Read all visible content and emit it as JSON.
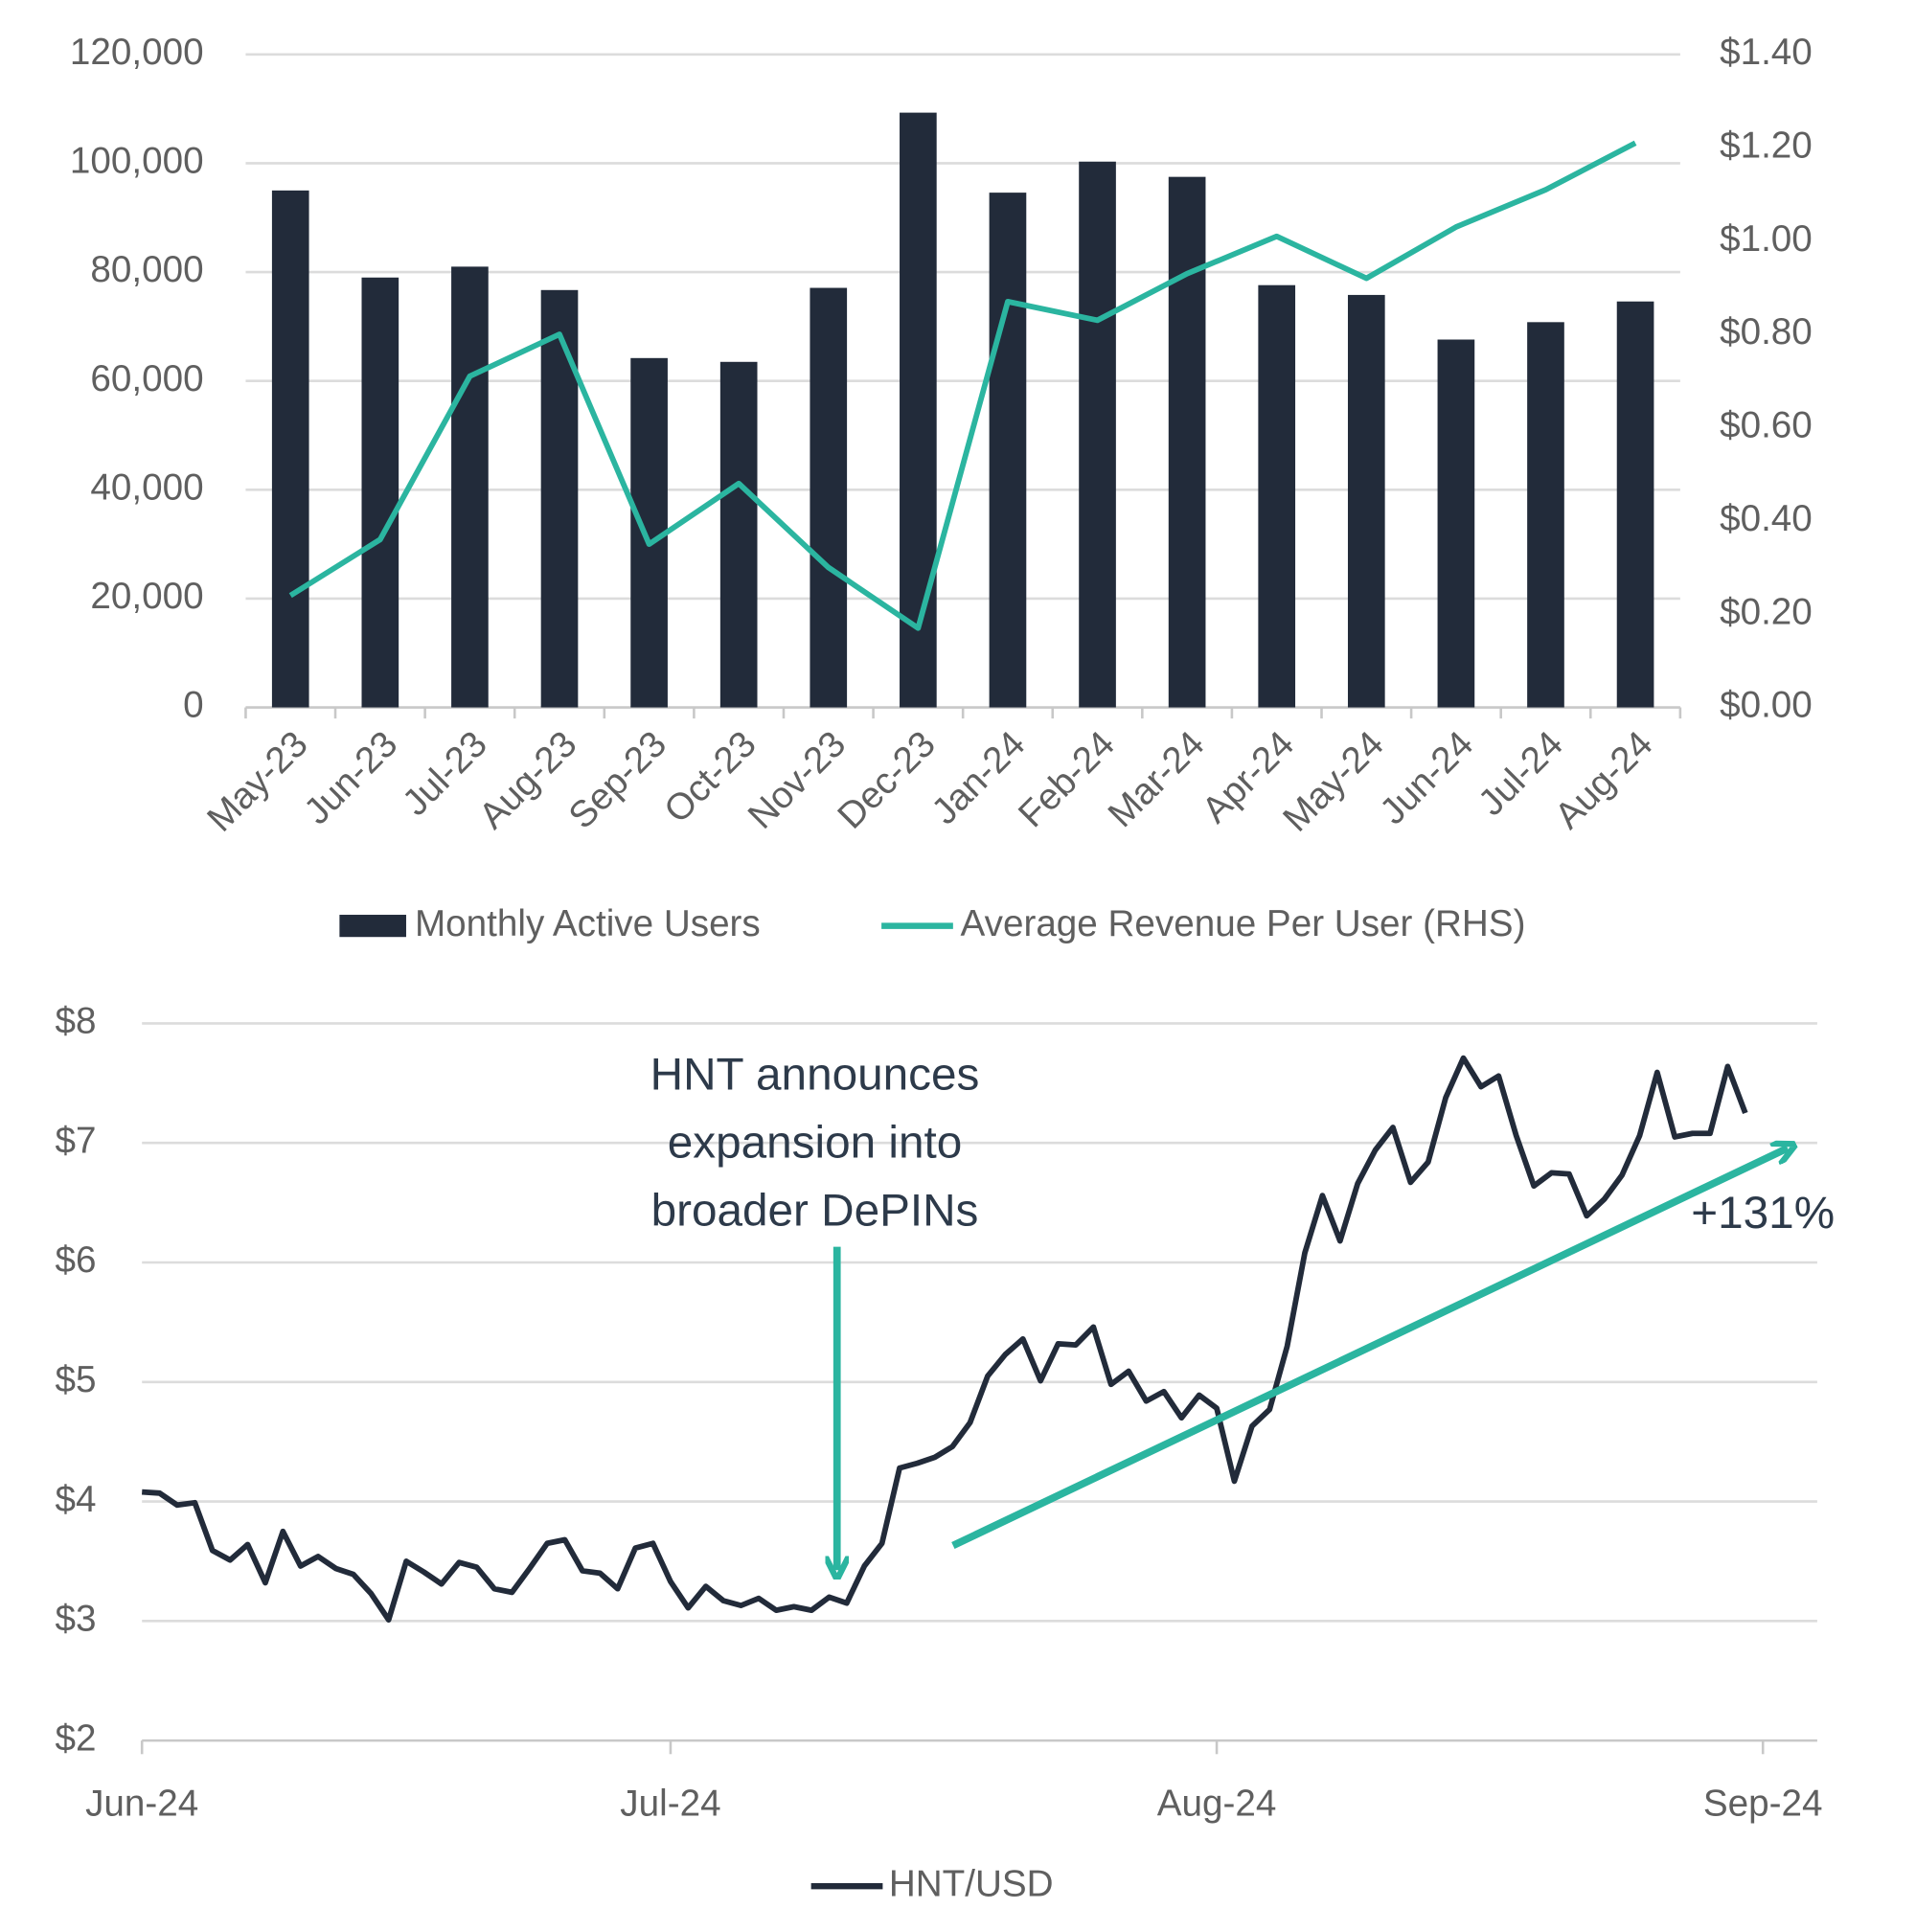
{
  "chart_data": [
    {
      "type": "bar",
      "categories": [
        "May-23",
        "Jun-23",
        "Jul-23",
        "Aug-23",
        "Sep-23",
        "Oct-23",
        "Nov-23",
        "Dec-23",
        "Jan-24",
        "Feb-24",
        "Mar-24",
        "Apr-24",
        "May-24",
        "Jun-24",
        "Jul-24",
        "Aug-24"
      ],
      "series": [
        {
          "name": "Monthly Active Users",
          "type": "bar",
          "color": "#222b3a",
          "values": [
            95000,
            79000,
            81000,
            76700,
            64200,
            63500,
            77100,
            109300,
            94600,
            100300,
            97500,
            77600,
            75800,
            67600,
            70800,
            74600
          ]
        },
        {
          "name": "Average Revenue Per User (RHS)",
          "type": "line",
          "axis": "y2",
          "color": "#2bb5a0",
          "values": [
            0.24,
            0.36,
            0.71,
            0.8,
            0.35,
            0.48,
            0.3,
            0.17,
            0.87,
            0.83,
            0.93,
            1.01,
            0.92,
            1.03,
            1.11,
            1.21
          ]
        }
      ],
      "ylim": [
        0,
        120000
      ],
      "yticks": [
        0,
        {
          "value": 20000,
          "label": "20,000"
        },
        {
          "value": 40000,
          "label": "40,000"
        },
        {
          "value": 60000,
          "label": "60,000"
        },
        {
          "value": 80000,
          "label": "80,000"
        },
        {
          "value": 100000,
          "label": "100,000"
        },
        {
          "value": 120000,
          "label": "120,000"
        }
      ],
      "y2lim": [
        0,
        1.4
      ],
      "y2ticks": [
        {
          "value": 0,
          "label": "$0.00"
        },
        {
          "value": 0.2,
          "label": "$0.20"
        },
        {
          "value": 0.4,
          "label": "$0.40"
        },
        {
          "value": 0.6,
          "label": "$0.60"
        },
        {
          "value": 0.8,
          "label": "$0.80"
        },
        {
          "value": 1,
          "label": "$1.00"
        },
        {
          "value": 1.2,
          "label": "$1.20"
        },
        {
          "value": 1.4,
          "label": "$1.40"
        }
      ],
      "grid": true,
      "legend": "bottom"
    },
    {
      "type": "line",
      "x": [
        0,
        1,
        2,
        3,
        4,
        5,
        6,
        7,
        8,
        9,
        10,
        11,
        12,
        13,
        14,
        15,
        16,
        17,
        18,
        19,
        20,
        21,
        22,
        23,
        24,
        25,
        26,
        27,
        28,
        29,
        30,
        31,
        32,
        33,
        34,
        35,
        36,
        37,
        38,
        39,
        40,
        41,
        42,
        43,
        44,
        45,
        46,
        47,
        48,
        49,
        50,
        51,
        52,
        53,
        54,
        55,
        56,
        57,
        58,
        59,
        60,
        61,
        62,
        63,
        64,
        65,
        66,
        67,
        68,
        69,
        70,
        71,
        72,
        73,
        74,
        75,
        76,
        77,
        78,
        79,
        80,
        81,
        82,
        83,
        84,
        85,
        86,
        87,
        88,
        89,
        90,
        91
      ],
      "series": [
        {
          "name": "HNT/USD",
          "color": "#222b3a",
          "values": [
            4.08,
            4.07,
            3.97,
            3.99,
            3.59,
            3.51,
            3.64,
            3.32,
            3.75,
            3.46,
            3.54,
            3.44,
            3.39,
            3.23,
            3.01,
            3.5,
            3.41,
            3.31,
            3.49,
            3.45,
            3.27,
            3.24,
            3.44,
            3.65,
            3.68,
            3.42,
            3.4,
            3.27,
            3.61,
            3.65,
            3.33,
            3.11,
            3.29,
            3.17,
            3.13,
            3.19,
            3.09,
            3.12,
            3.09,
            3.2,
            3.15,
            3.46,
            3.65,
            4.28,
            4.32,
            4.37,
            4.46,
            4.66,
            5.05,
            5.23,
            5.36,
            5.01,
            5.32,
            5.31,
            5.46,
            4.98,
            5.09,
            4.84,
            4.92,
            4.7,
            4.89,
            4.78,
            4.17,
            4.63,
            4.77,
            5.3,
            6.08,
            6.56,
            6.18,
            6.66,
            6.94,
            7.13,
            6.67,
            6.84,
            7.38,
            7.71,
            7.47,
            7.56,
            7.06,
            6.64,
            6.75,
            6.74,
            6.39,
            6.53,
            6.73,
            7.06,
            7.59,
            7.05,
            7.08,
            7.08,
            7.64,
            7.25
          ]
        }
      ],
      "xlim": [
        0,
        92
      ],
      "xticks": [
        {
          "value": 0,
          "label": "Jun-24"
        },
        {
          "value": 30,
          "label": "Jul-24"
        },
        {
          "value": 61,
          "label": "Aug-24"
        },
        {
          "value": 92,
          "label": "Sep-24"
        }
      ],
      "ylim": [
        2,
        8
      ],
      "yticks": [
        {
          "value": 2,
          "label": "$2"
        },
        {
          "value": 3,
          "label": "$3"
        },
        {
          "value": 4,
          "label": "$4"
        },
        {
          "value": 5,
          "label": "$5"
        },
        {
          "value": 6,
          "label": "$6"
        },
        {
          "value": 7,
          "label": "$7"
        },
        {
          "value": 8,
          "label": "$8"
        }
      ],
      "grid": true,
      "legend": "bottom",
      "annotations": [
        {
          "lines": [
            "HNT announces",
            "expansion into",
            "broader DePINs"
          ]
        },
        {
          "text": "+131%"
        }
      ]
    }
  ]
}
